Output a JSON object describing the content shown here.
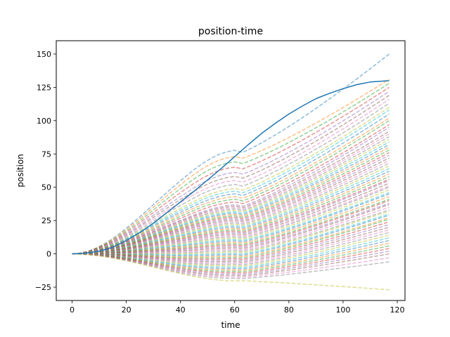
{
  "chart_data": {
    "type": "line",
    "title": "position-time",
    "xlabel": "time",
    "ylabel": "position",
    "xlim": [
      -5.85,
      122.85
    ],
    "ylim": [
      -35,
      160
    ],
    "xticks": [
      0,
      20,
      40,
      60,
      80,
      100,
      120
    ],
    "yticks": [
      -25,
      0,
      25,
      50,
      75,
      100,
      125,
      150
    ],
    "grid": false,
    "main_series": {
      "color": "#1f77b4",
      "style": "solid",
      "x": [
        0,
        5,
        10,
        15,
        20,
        25,
        30,
        35,
        40,
        45,
        50,
        55,
        60,
        65,
        70,
        75,
        80,
        85,
        90,
        95,
        100,
        105,
        110,
        117
      ],
      "y": [
        0,
        0.5,
        2,
        5,
        10,
        16,
        23,
        31,
        39,
        47,
        55.5,
        64,
        73,
        82,
        90.5,
        98,
        105,
        111,
        116.5,
        120.5,
        124,
        127,
        129,
        130
      ]
    },
    "sample_series": {
      "style": "dashed",
      "opacity": 0.5,
      "x_max": 117,
      "palette": [
        "#1f77b4",
        "#ff7f0e",
        "#2ca02c",
        "#d62728",
        "#9467bd",
        "#8c564b",
        "#e377c2",
        "#7f7f7f",
        "#bcbd22",
        "#17becf"
      ],
      "final_values": [
        150,
        131,
        128,
        125,
        122,
        119,
        116,
        113,
        110,
        108,
        105,
        102,
        100,
        97,
        95,
        92,
        90,
        88,
        86,
        84,
        82,
        80,
        78,
        76,
        74,
        72,
        70,
        68,
        66,
        64,
        62,
        60,
        58,
        56,
        55,
        53,
        51,
        50,
        48,
        46,
        45,
        43,
        41,
        40,
        38,
        37,
        35,
        33,
        32,
        30,
        29,
        27,
        26,
        24,
        22,
        20,
        18,
        16,
        14,
        12,
        10,
        8,
        6,
        4,
        2,
        0,
        -3,
        -6,
        -27
      ],
      "peak_values_at_60": [
        74,
        70,
        66,
        62,
        58,
        55,
        52,
        49,
        46,
        44,
        42,
        40,
        38,
        36,
        34,
        33,
        32,
        31,
        30,
        29,
        28,
        27,
        26,
        25,
        24,
        23,
        22,
        21,
        20,
        19,
        18,
        17,
        16,
        15,
        14,
        13,
        12,
        11,
        10,
        9,
        8,
        7,
        6,
        5,
        4,
        3,
        2,
        1,
        0,
        -1,
        -2,
        -3,
        -4,
        -5,
        -6,
        -7,
        -8,
        -9,
        -10,
        -11,
        -12,
        -13,
        -14,
        -15,
        -16,
        -17,
        -18,
        -19,
        -20
      ]
    }
  }
}
